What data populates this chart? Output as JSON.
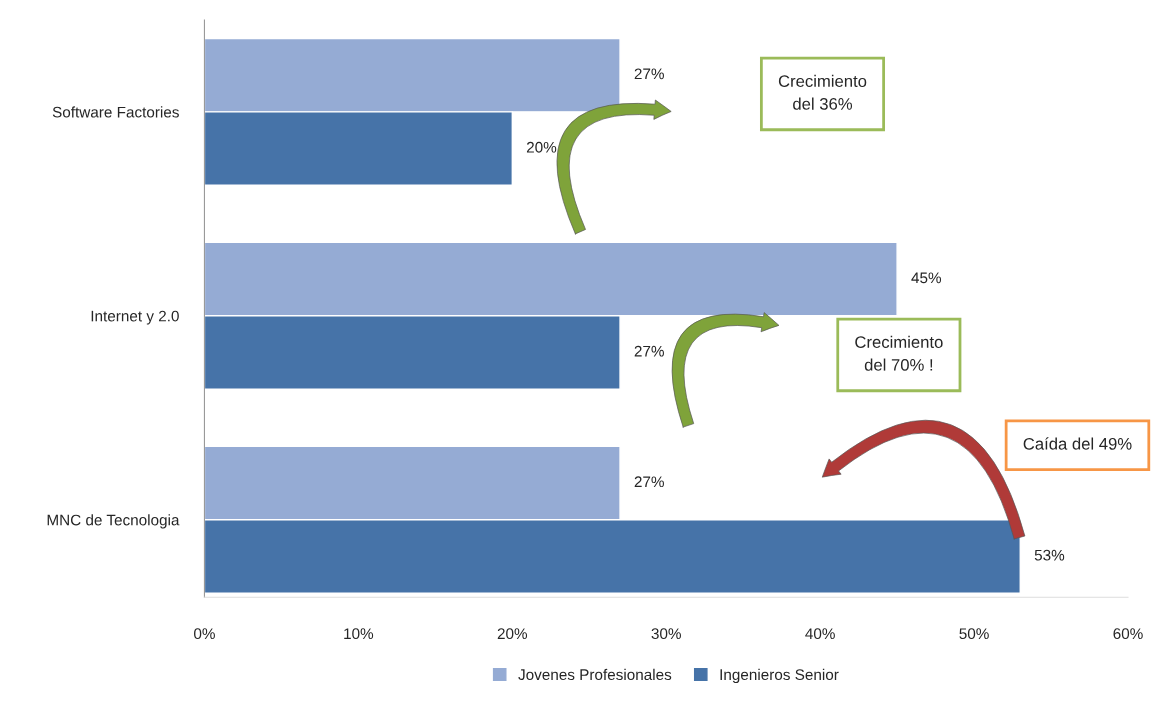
{
  "chart_data": {
    "type": "bar",
    "orientation": "horizontal",
    "categories": [
      "Software Factories",
      "Internet y 2.0",
      "MNC de Tecnologia"
    ],
    "series": [
      {
        "name": "Jovenes Profesionales",
        "color": "#95abd4",
        "values": [
          27,
          45,
          27
        ],
        "value_labels": [
          "27%",
          "45%",
          "27%"
        ]
      },
      {
        "name": "Ingenieros Senior",
        "color": "#4673a8",
        "values": [
          20,
          27,
          53
        ],
        "value_labels": [
          "20%",
          "27%",
          "53%"
        ]
      }
    ],
    "xlim": [
      0,
      60
    ],
    "xticks": [
      {
        "value": 0,
        "label": "0%"
      },
      {
        "value": 10,
        "label": "10%"
      },
      {
        "value": 20,
        "label": "20%"
      },
      {
        "value": 30,
        "label": "30%"
      },
      {
        "value": 40,
        "label": "40%"
      },
      {
        "value": 50,
        "label": "50%"
      },
      {
        "value": 60,
        "label": "60%"
      }
    ],
    "annotations": [
      "Crecimiento\ndel 36%",
      "Crecimiento\ndel 70% !",
      "Caída del 49%"
    ],
    "grid": false,
    "legend": "bottom"
  }
}
